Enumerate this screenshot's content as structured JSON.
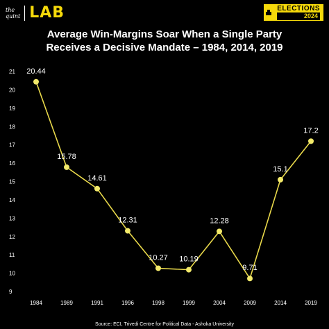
{
  "header": {
    "brand_top": "the",
    "brand_bottom": "quint",
    "lab_label": "LAB",
    "badge_title": "ELECTIONS",
    "badge_year": "2024",
    "accent": "#f5d90a"
  },
  "chart_data": {
    "type": "line",
    "title_line1": "Average Win-Margins Soar When a Single Party",
    "title_line2": "Receives a Decisive Mandate – 1984, 2014, 2019",
    "categories": [
      "1984",
      "1989",
      "1991",
      "1996",
      "1998",
      "1999",
      "2004",
      "2009",
      "2014",
      "2019"
    ],
    "series": [
      {
        "values": [
          20.44,
          15.78,
          14.61,
          12.31,
          10.27,
          10.19,
          12.28,
          9.71,
          15.1,
          17.2
        ]
      }
    ],
    "value_labels": [
      "20.44",
      "15.78",
      "14.61",
      "12.31",
      "10.27",
      "10.19",
      "12.28",
      "9.71",
      "15.1",
      "17.2"
    ],
    "y_ticks": [
      "9",
      "10",
      "11",
      "12",
      "13",
      "14",
      "15",
      "16",
      "17",
      "18",
      "19",
      "20",
      "21"
    ],
    "ylim": [
      9,
      21
    ],
    "xlabel": "",
    "ylabel": "",
    "grid": false,
    "line_color": "#e8d84a",
    "marker_color": "#f2e96a"
  },
  "footer": {
    "source": "Source: ECI, Trivedi Centre for Political Data - Ashoka University"
  }
}
